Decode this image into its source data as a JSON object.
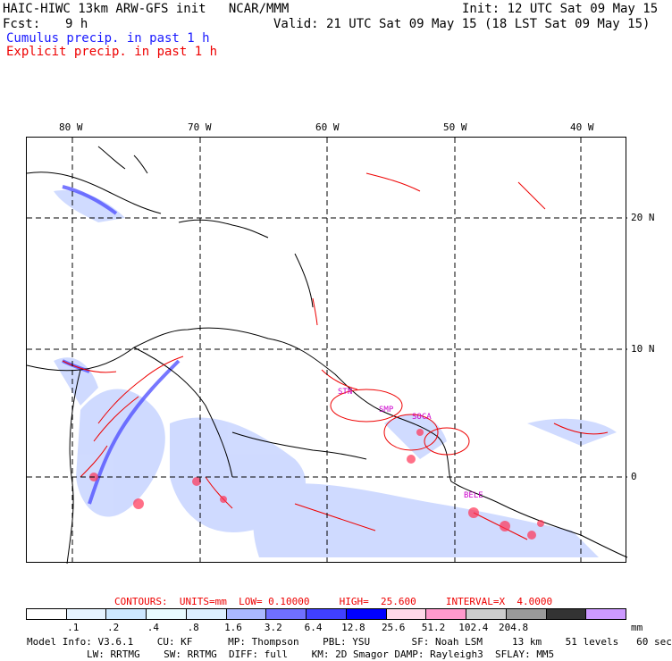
{
  "header": {
    "title": "HAIC-HIWC 13km ARW-GFS init   NCAR/MMM",
    "init": "Init: 12 UTC Sat 09 May 15",
    "fcst_label": "Fcst:",
    "fcst_value": "9 h",
    "valid": "Valid: 21 UTC Sat 09 May 15 (18 LST Sat 09 May 15)",
    "legend_cumulus": "Cumulus precip. in past 1 h",
    "legend_explicit": "Explicit precip. in past 1 h"
  },
  "map": {
    "lon_labels": [
      "80 W",
      "70 W",
      "60 W",
      "50 W",
      "40 W"
    ],
    "lat_labels": [
      "20 N",
      "10 N",
      "0"
    ],
    "cities": [
      "STN",
      "SMP",
      "SOCA",
      "BELE"
    ]
  },
  "contours": {
    "label": "CONTOURS:  UNITS=mm  LOW= 0.10000     HIGH=  25.600     INTERVAL=X  4.0000"
  },
  "colorbar": {
    "ticks": [
      ".1",
      ".2",
      ".4",
      ".8",
      "1.6",
      "3.2",
      "6.4",
      "12.8",
      "25.6",
      "51.2",
      "102.4",
      "204.8"
    ],
    "unit": "mm",
    "colors": [
      "#ffffff",
      "#e6f3ff",
      "#cde8ff",
      "#e8fbff",
      "#dcefff",
      "#aab8ff",
      "#6f6fff",
      "#4040ff",
      "#0000ff",
      "#ffd8e8",
      "#ff99cc",
      "#cccccc",
      "#999999",
      "#333333",
      "#cc99ff"
    ]
  },
  "model_info": {
    "line1": "Model Info: V3.6.1    CU: KF      MP: Thompson    PBL: YSU       SF: Noah LSM     13 km    51 levels   60 sec",
    "line2": "LW: RRTMG    SW: RRTMG  DIFF: full    KM: 2D Smagor DAMP: Rayleigh3  SFLAY: MM5"
  }
}
